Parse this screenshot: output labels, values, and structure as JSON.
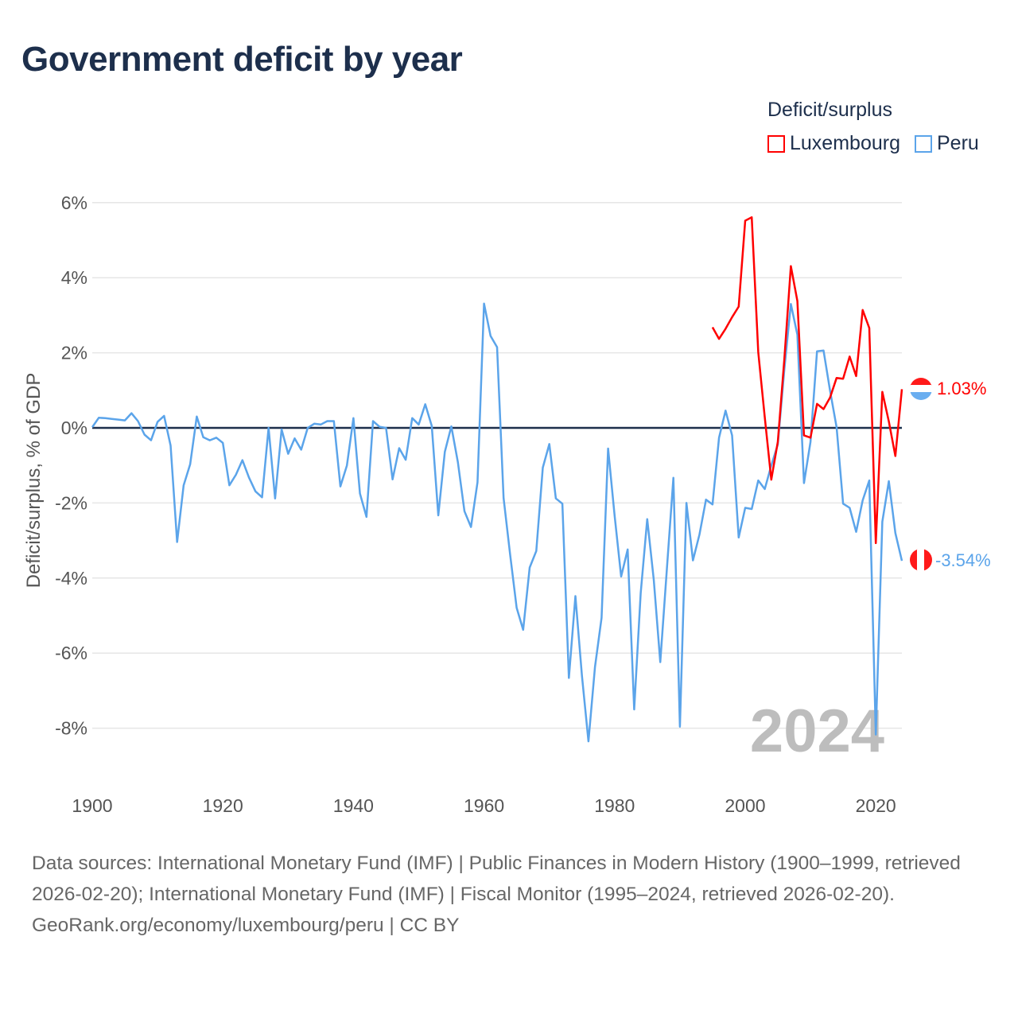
{
  "title": "Government deficit by year",
  "legend": {
    "title": "Deficit/surplus",
    "items": [
      {
        "name": "Luxembourg",
        "color": "#ff0000"
      },
      {
        "name": "Peru",
        "color": "#5ba4ea"
      }
    ]
  },
  "footer": {
    "sources": "Data sources: International Monetary Fund (IMF) | Public Finances in Modern History (1900–1999, retrieved 2026-02-20); International Monetary Fund (IMF) | Fiscal Monitor (1995–2024, retrieved 2026-02-20).",
    "credit": "GeoRank.org/economy/luxembourg/peru | CC BY"
  },
  "chart_data": {
    "type": "line",
    "title": "Government deficit by year",
    "xlabel": "",
    "ylabel": "Deficit/surplus, % of GDP",
    "xlim": [
      1900,
      2024
    ],
    "ylim": [
      -8,
      6
    ],
    "x_ticks": [
      1900,
      1920,
      1940,
      1960,
      1980,
      2000,
      2020
    ],
    "x_tick_labels": [
      "1900",
      "1920",
      "1940",
      "1960",
      "1980",
      "2000",
      "2020"
    ],
    "y_ticks": [
      6,
      4,
      2,
      0,
      -2,
      -4,
      -6,
      -8
    ],
    "y_tick_labels": [
      "6%",
      "4%",
      "2%",
      "0%",
      "-2%",
      "-4%",
      "-6%",
      "-8%"
    ],
    "grid": true,
    "legend_position": "top-right",
    "year_watermark": "2024",
    "end_labels": [
      "1.03%",
      "-3.54%"
    ],
    "series": [
      {
        "name": "Luxembourg",
        "color": "#ff0000",
        "start_year": 1995,
        "values": [
          2.68,
          2.37,
          2.64,
          2.95,
          3.23,
          5.52,
          5.61,
          2.02,
          0.28,
          -1.38,
          -0.37,
          1.83,
          4.31,
          3.38,
          -0.2,
          -0.26,
          0.64,
          0.5,
          0.81,
          1.33,
          1.31,
          1.9,
          1.38,
          3.14,
          2.66,
          -3.07,
          0.96,
          0.17,
          -0.75,
          1.03
        ]
      },
      {
        "name": "Peru",
        "color": "#5ba4ea",
        "start_year": 1900,
        "values": [
          0.02,
          0.27,
          0.26,
          0.24,
          0.22,
          0.2,
          0.39,
          0.18,
          -0.18,
          -0.33,
          0.16,
          0.32,
          -0.47,
          -3.04,
          -1.53,
          -0.97,
          0.3,
          -0.25,
          -0.33,
          -0.26,
          -0.4,
          -1.53,
          -1.25,
          -0.86,
          -1.32,
          -1.69,
          -1.85,
          0.0,
          -1.88,
          -0.04,
          -0.69,
          -0.28,
          -0.58,
          0.0,
          0.11,
          0.09,
          0.18,
          0.18,
          -1.56,
          -1.0,
          0.26,
          -1.75,
          -2.37,
          0.18,
          0.03,
          0.0,
          -1.37,
          -0.54,
          -0.85,
          0.26,
          0.09,
          0.63,
          0.05,
          -2.33,
          -0.64,
          0.04,
          -0.91,
          -2.22,
          -2.64,
          -1.45,
          3.31,
          2.45,
          2.15,
          -1.87,
          -3.37,
          -4.79,
          -5.38,
          -3.72,
          -3.28,
          -1.06,
          -0.43,
          -1.88,
          -2.02,
          -6.66,
          -4.48,
          -6.6,
          -8.35,
          -6.37,
          -5.06,
          -0.55,
          -2.34,
          -3.96,
          -3.24,
          -7.5,
          -4.4,
          -2.43,
          -4.04,
          -6.24,
          -3.76,
          -1.33,
          -7.96,
          -2.0,
          -3.53,
          -2.84,
          -1.91,
          -2.04,
          -0.26,
          0.46,
          -0.2,
          -2.92,
          -2.13,
          -2.16,
          -1.4,
          -1.63,
          -1.0,
          -0.44,
          1.56,
          3.3,
          2.48,
          -1.47,
          -0.37,
          2.04,
          2.06,
          0.99,
          0.02,
          -2.02,
          -2.13,
          -2.77,
          -1.93,
          -1.4,
          -8.17,
          -2.5,
          -1.42,
          -2.8,
          -3.54
        ]
      }
    ]
  }
}
